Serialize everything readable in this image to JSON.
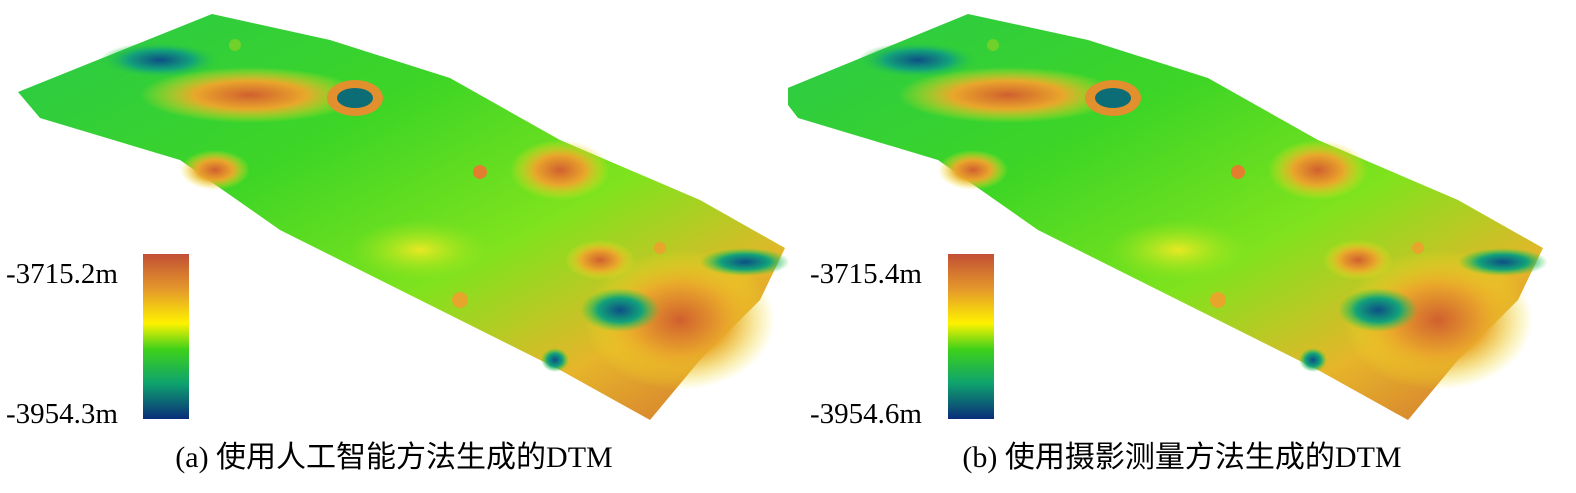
{
  "panels": [
    {
      "caption": "(a) 使用人工智能方法生成的DTM",
      "max_label": "-3715.2m",
      "min_label": "-3954.3m"
    },
    {
      "caption": "(b) 使用摄影测量方法生成的DTM",
      "max_label": "-3715.4m",
      "min_label": "-3954.6m"
    }
  ],
  "colormap": [
    "#c24f35",
    "#e59b2b",
    "#fef200",
    "#3dd11b",
    "#0fa46d",
    "#0a2d7a"
  ]
}
